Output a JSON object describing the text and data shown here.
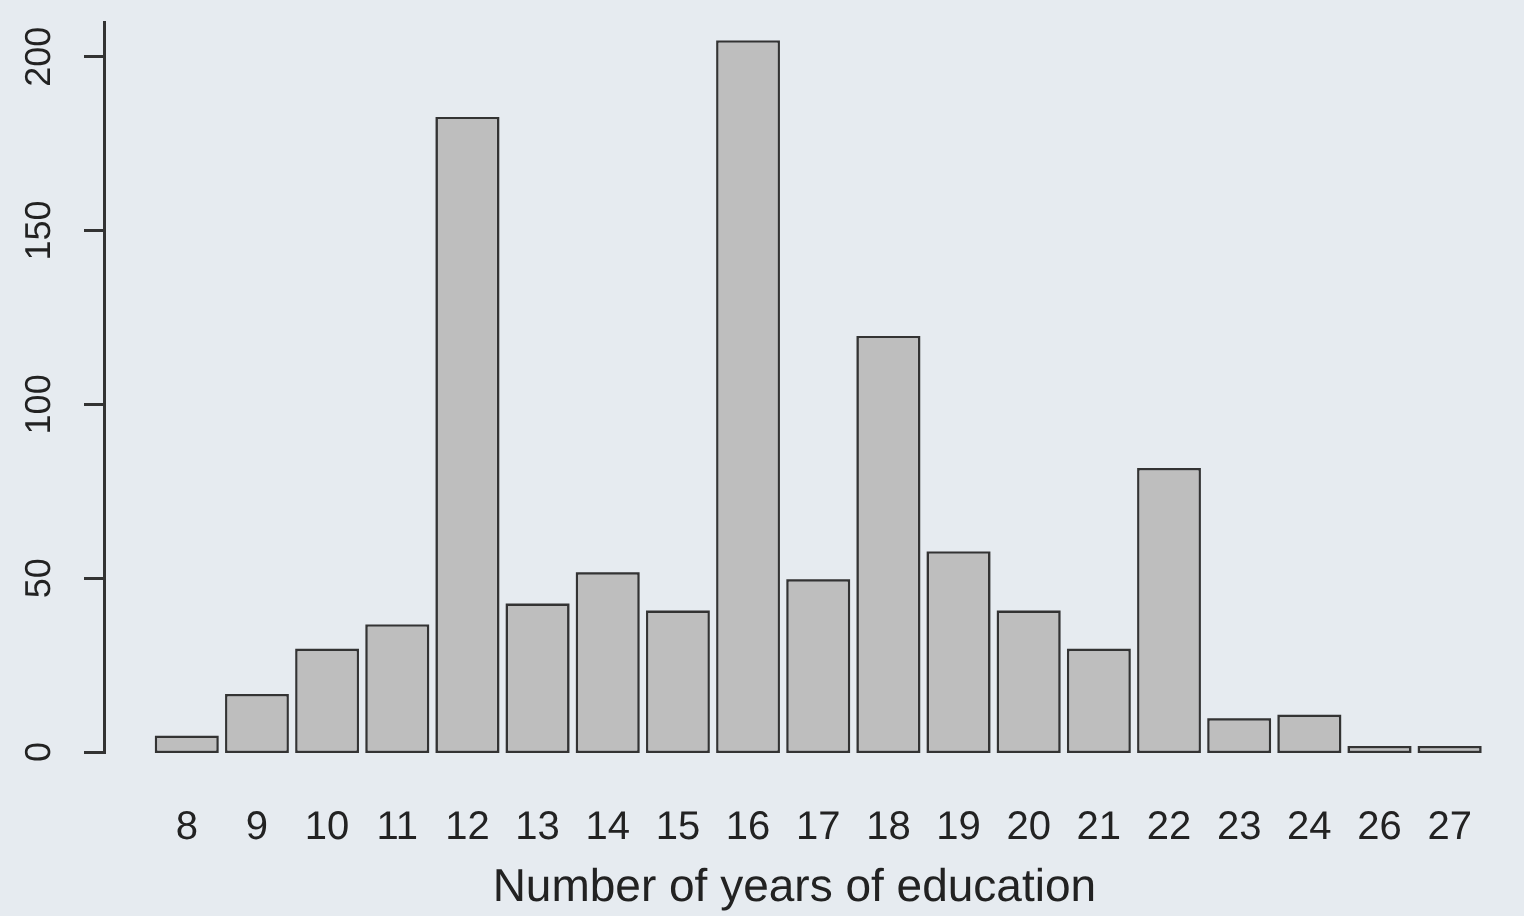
{
  "chart_data": {
    "type": "bar",
    "xlabel": "Number of years of education",
    "categories": [
      "8",
      "9",
      "10",
      "11",
      "12",
      "13",
      "14",
      "15",
      "16",
      "17",
      "18",
      "19",
      "20",
      "21",
      "22",
      "23",
      "24",
      "26",
      "27"
    ],
    "values": [
      4,
      16,
      29,
      36,
      182,
      42,
      51,
      40,
      204,
      49,
      119,
      57,
      40,
      29,
      81,
      9,
      10,
      1,
      1
    ],
    "color": "#bebebe",
    "ylim": [
      0,
      210
    ],
    "yticks": [
      0,
      50,
      100,
      150,
      200
    ]
  }
}
